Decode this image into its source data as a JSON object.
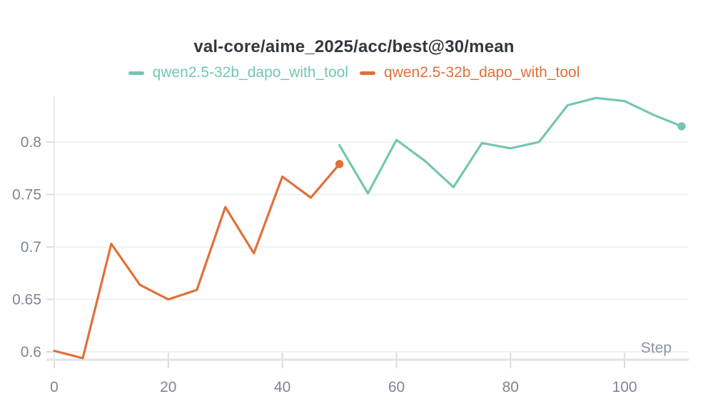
{
  "chart_data": {
    "type": "line",
    "title": "val-core/aime_2025/acc/best@30/mean",
    "xlabel": "Step",
    "ylabel": "",
    "grid": true,
    "legend_position": "top-center",
    "x_ticks": [
      0,
      20,
      40,
      60,
      80,
      100
    ],
    "y_ticks": [
      0.6,
      0.65,
      0.7,
      0.75,
      0.8
    ],
    "xlim": [
      0,
      111.25
    ],
    "ylim": [
      0.5925,
      0.8435
    ],
    "series": [
      {
        "name": "qwen2.5-32b_dapo_with_tool",
        "color": "#74c6b2",
        "end_marker": true,
        "points": [
          [
            50,
            0.797
          ],
          [
            55,
            0.751
          ],
          [
            60,
            0.802
          ],
          [
            65,
            0.782
          ],
          [
            70,
            0.757
          ],
          [
            75,
            0.799
          ],
          [
            80,
            0.794
          ],
          [
            85,
            0.8
          ],
          [
            90,
            0.835
          ],
          [
            95,
            0.842
          ],
          [
            100,
            0.839
          ],
          [
            105,
            0.826
          ],
          [
            110,
            0.815
          ]
        ]
      },
      {
        "name": "qwen2.5-32b_dapo_with_tool",
        "color": "#e0703a",
        "end_marker": true,
        "points": [
          [
            0,
            0.601
          ],
          [
            5,
            0.594
          ],
          [
            10,
            0.703
          ],
          [
            15,
            0.664
          ],
          [
            20,
            0.65
          ],
          [
            25,
            0.659
          ],
          [
            30,
            0.738
          ],
          [
            35,
            0.694
          ],
          [
            40,
            0.767
          ],
          [
            45,
            0.747
          ],
          [
            50,
            0.779
          ]
        ]
      }
    ],
    "style_colors": {
      "gridline": "#ebedee",
      "axis_line": "#e1e3e6",
      "y_axis_line": "#e8eaec",
      "tick_mark": "#d9dce0",
      "tick_label": "#7d8695",
      "axis_title": "#8b93a0",
      "title_text": "#33383f"
    }
  }
}
